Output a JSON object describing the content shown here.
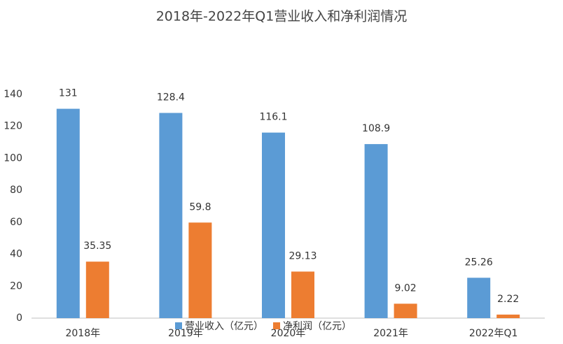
{
  "chart_data": {
    "type": "bar",
    "title": "2018年-2022年Q1营业收入和净利润情况",
    "categories": [
      "2018年",
      "2019年",
      "2020年",
      "2021年",
      "2022年Q1"
    ],
    "series": [
      {
        "name": "营业收入（亿元）",
        "color": "#5b9bd5",
        "values": [
          131,
          128.4,
          116.1,
          108.9,
          25.26
        ]
      },
      {
        "name": "净利润（亿元）",
        "color": "#ed7d31",
        "values": [
          35.35,
          59.8,
          29.13,
          9.02,
          2.22
        ]
      }
    ],
    "ylim": [
      0,
      140
    ],
    "yticks": [
      0,
      20,
      40,
      60,
      80,
      100,
      120,
      140
    ],
    "grid": false,
    "legend": "bottom"
  }
}
